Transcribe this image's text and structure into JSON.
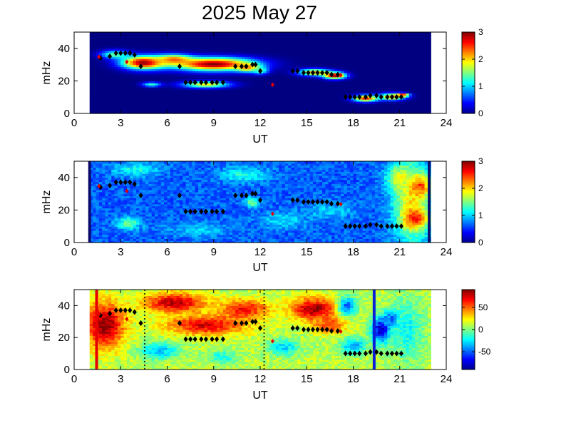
{
  "title": "2025 May 27",
  "chart_data": [
    {
      "type": "heatmap",
      "panel": "top",
      "xlabel": "UT",
      "ylabel": "mHz",
      "xlim": [
        0,
        24
      ],
      "ylim": [
        0,
        50
      ],
      "xticks": [
        "0",
        "3",
        "6",
        "9",
        "12",
        "15",
        "18",
        "21",
        "24"
      ],
      "yticks": [
        "0",
        "20",
        "40"
      ],
      "data_x_range": [
        1,
        23
      ],
      "colorbar": {
        "min": 0,
        "max": 3,
        "ticks": [
          "0",
          "1",
          "2",
          "3"
        ]
      },
      "background_value": 0,
      "blobs": [
        {
          "x": 2.6,
          "y": 36.5,
          "w": 0.9,
          "h": 2.5,
          "v": 1.4
        },
        {
          "x": 4.5,
          "y": 31.5,
          "w": 1.4,
          "h": 4.0,
          "v": 3.0
        },
        {
          "x": 6.4,
          "y": 33.5,
          "w": 1.2,
          "h": 3.0,
          "v": 2.2
        },
        {
          "x": 9.0,
          "y": 30.5,
          "w": 2.6,
          "h": 4.0,
          "v": 3.0
        },
        {
          "x": 11.2,
          "y": 28.5,
          "w": 0.8,
          "h": 2.5,
          "v": 2.3
        },
        {
          "x": 12.0,
          "y": 26.5,
          "w": 0.5,
          "h": 2.0,
          "v": 1.4
        },
        {
          "x": 5.0,
          "y": 18.0,
          "w": 0.6,
          "h": 1.4,
          "v": 1.3
        },
        {
          "x": 8.5,
          "y": 18.0,
          "w": 1.5,
          "h": 2.0,
          "v": 1.9
        },
        {
          "x": 15.5,
          "y": 25.5,
          "w": 1.0,
          "h": 2.0,
          "v": 2.2
        },
        {
          "x": 16.8,
          "y": 23.5,
          "w": 0.7,
          "h": 2.0,
          "v": 3.0
        },
        {
          "x": 18.8,
          "y": 9.5,
          "w": 0.8,
          "h": 2.0,
          "v": 2.6
        },
        {
          "x": 20.5,
          "y": 10.5,
          "w": 0.8,
          "h": 2.0,
          "v": 2.3
        },
        {
          "x": 21.2,
          "y": 11.5,
          "w": 0.4,
          "h": 1.0,
          "v": 2.8
        }
      ]
    },
    {
      "type": "heatmap",
      "panel": "middle",
      "xlabel": "UT",
      "ylabel": "mHz",
      "xlim": [
        0,
        24
      ],
      "ylim": [
        0,
        50
      ],
      "xticks": [
        "0",
        "3",
        "6",
        "9",
        "12",
        "15",
        "18",
        "21",
        "24"
      ],
      "yticks": [
        "0",
        "20",
        "40"
      ],
      "data_x_range": [
        1,
        23
      ],
      "colorbar": {
        "min": 0,
        "max": 3,
        "ticks": [
          "0",
          "1",
          "2",
          "3"
        ]
      },
      "background_value": 0.65,
      "blobs": [
        {
          "x": 4.0,
          "y": 45.0,
          "w": 1.5,
          "h": 4.0,
          "v": 1.2
        },
        {
          "x": 11.0,
          "y": 42.0,
          "w": 1.5,
          "h": 5.0,
          "v": 1.2
        },
        {
          "x": 3.5,
          "y": 12.0,
          "w": 0.8,
          "h": 4.0,
          "v": 1.4
        },
        {
          "x": 8.0,
          "y": 8.0,
          "w": 2.0,
          "h": 4.0,
          "v": 1.0
        },
        {
          "x": 13.5,
          "y": 14.0,
          "w": 1.5,
          "h": 5.0,
          "v": 1.05
        },
        {
          "x": 16.5,
          "y": 20.0,
          "w": 1.5,
          "h": 5.0,
          "v": 1.0
        },
        {
          "x": 11.5,
          "y": 25.0,
          "w": 0.5,
          "h": 3.0,
          "v": 1.5
        },
        {
          "x": 21.8,
          "y": 25.0,
          "w": 1.2,
          "h": 25.0,
          "v": 1.9
        },
        {
          "x": 22.3,
          "y": 35.0,
          "w": 0.6,
          "h": 6.0,
          "v": 2.5
        },
        {
          "x": 22.0,
          "y": 15.0,
          "w": 0.7,
          "h": 6.0,
          "v": 2.6
        },
        {
          "x": 21.0,
          "y": 40.0,
          "w": 0.8,
          "h": 8.0,
          "v": 1.8
        }
      ],
      "vertical_lines": [
        {
          "x": 1.0,
          "color": "#0b0b6e",
          "style": "solid"
        },
        {
          "x": 22.9,
          "color": "#0b0b6e",
          "style": "solid"
        }
      ]
    },
    {
      "type": "heatmap",
      "panel": "bottom",
      "xlabel": "UT",
      "ylabel": "mHz",
      "xlim": [
        0,
        24
      ],
      "ylim": [
        0,
        50
      ],
      "xticks": [
        "0",
        "3",
        "6",
        "9",
        "12",
        "15",
        "18",
        "21",
        "24"
      ],
      "yticks": [
        "0",
        "20",
        "40"
      ],
      "data_x_range": [
        1,
        23
      ],
      "colorbar": {
        "min": -90,
        "max": 90,
        "ticks": [
          "50",
          "0",
          "-50"
        ],
        "tick_values": [
          50,
          0,
          -50
        ]
      },
      "background_value": 10,
      "blobs": [
        {
          "x": 2.0,
          "y": 28.0,
          "w": 1.2,
          "h": 14.0,
          "v": 90
        },
        {
          "x": 6.5,
          "y": 42.0,
          "w": 2.0,
          "h": 6.0,
          "v": 80
        },
        {
          "x": 8.5,
          "y": 28.0,
          "w": 2.5,
          "h": 6.0,
          "v": 75
        },
        {
          "x": 11.0,
          "y": 38.0,
          "w": 1.5,
          "h": 6.0,
          "v": 70
        },
        {
          "x": 15.5,
          "y": 38.0,
          "w": 1.5,
          "h": 7.0,
          "v": 85
        },
        {
          "x": 16.5,
          "y": 28.0,
          "w": 1.0,
          "h": 5.0,
          "v": 60
        },
        {
          "x": 19.8,
          "y": 25.0,
          "w": 0.6,
          "h": 8.0,
          "v": -85
        },
        {
          "x": 20.5,
          "y": 32.0,
          "w": 0.5,
          "h": 5.0,
          "v": -60
        },
        {
          "x": 17.6,
          "y": 40.0,
          "w": 0.6,
          "h": 6.0,
          "v": -50
        },
        {
          "x": 18.0,
          "y": 15.0,
          "w": 0.8,
          "h": 5.0,
          "v": -40
        },
        {
          "x": 5.5,
          "y": 12.0,
          "w": 1.2,
          "h": 5.0,
          "v": -35
        },
        {
          "x": 9.5,
          "y": 8.0,
          "w": 1.0,
          "h": 4.0,
          "v": -20
        },
        {
          "x": 13.5,
          "y": 14.0,
          "w": 1.0,
          "h": 5.0,
          "v": -30
        },
        {
          "x": 21.5,
          "y": 25.0,
          "w": 1.0,
          "h": 20.0,
          "v": -20
        }
      ],
      "vertical_lines": [
        {
          "x": 1.45,
          "color": "#e60000",
          "style": "solid"
        },
        {
          "x": 4.55,
          "color": "#000000",
          "style": "dotted"
        },
        {
          "x": 12.25,
          "color": "#000000",
          "style": "dotted"
        },
        {
          "x": 19.35,
          "color": "#0a1fd6",
          "style": "solid"
        }
      ]
    }
  ],
  "markers": {
    "black": [
      [
        1.7,
        34
      ],
      [
        2.3,
        35
      ],
      [
        2.7,
        37
      ],
      [
        3.0,
        37
      ],
      [
        3.3,
        37
      ],
      [
        3.6,
        37
      ],
      [
        3.9,
        36
      ],
      [
        4.3,
        29
      ],
      [
        6.8,
        29
      ],
      [
        7.2,
        19
      ],
      [
        7.5,
        19
      ],
      [
        7.8,
        19
      ],
      [
        8.2,
        19
      ],
      [
        8.5,
        19
      ],
      [
        8.9,
        19
      ],
      [
        9.2,
        19
      ],
      [
        9.6,
        19
      ],
      [
        10.4,
        29
      ],
      [
        10.8,
        29
      ],
      [
        11.1,
        29
      ],
      [
        11.5,
        30
      ],
      [
        11.7,
        30
      ],
      [
        12.0,
        26
      ],
      [
        14.1,
        26
      ],
      [
        14.4,
        26
      ],
      [
        14.8,
        25
      ],
      [
        15.1,
        25
      ],
      [
        15.4,
        25
      ],
      [
        15.7,
        25
      ],
      [
        16.0,
        25
      ],
      [
        16.3,
        25
      ],
      [
        16.6,
        24
      ],
      [
        17.0,
        24
      ],
      [
        17.5,
        10
      ],
      [
        17.8,
        10
      ],
      [
        18.1,
        10
      ],
      [
        18.4,
        10
      ],
      [
        18.8,
        10
      ],
      [
        19.1,
        11
      ],
      [
        19.5,
        11
      ],
      [
        19.8,
        10
      ],
      [
        20.2,
        10
      ],
      [
        20.5,
        10
      ],
      [
        20.8,
        10
      ],
      [
        21.1,
        10
      ]
    ],
    "red": [
      [
        1.6,
        35
      ],
      [
        3.4,
        32
      ],
      [
        12.8,
        18
      ],
      [
        17.2,
        24
      ]
    ]
  }
}
